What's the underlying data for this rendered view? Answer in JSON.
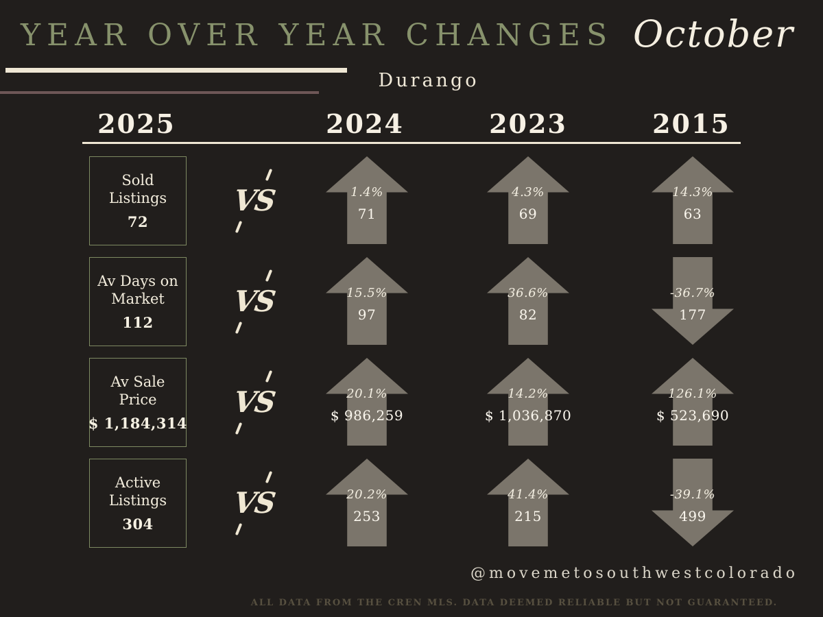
{
  "header": {
    "title": "YEAR OVER YEAR CHANGES",
    "month": "October",
    "location": "Durango"
  },
  "columns": {
    "current": "2025",
    "years": [
      "2024",
      "2023",
      "2015"
    ]
  },
  "vs_label": "VS",
  "rows": [
    {
      "label": "Sold Listings",
      "current_value": "72",
      "comparisons": [
        {
          "year": "2024",
          "direction": "up",
          "pct": "1.4%",
          "value": "71"
        },
        {
          "year": "2023",
          "direction": "up",
          "pct": "4.3%",
          "value": "69"
        },
        {
          "year": "2015",
          "direction": "up",
          "pct": "14.3%",
          "value": "63"
        }
      ]
    },
    {
      "label": "Av Days on Market",
      "current_value": "112",
      "comparisons": [
        {
          "year": "2024",
          "direction": "up",
          "pct": "15.5%",
          "value": "97"
        },
        {
          "year": "2023",
          "direction": "up",
          "pct": "36.6%",
          "value": "82"
        },
        {
          "year": "2015",
          "direction": "down",
          "pct": "-36.7%",
          "value": "177"
        }
      ]
    },
    {
      "label": "Av Sale Price",
      "current_value": "$ 1,184,314",
      "comparisons": [
        {
          "year": "2024",
          "direction": "up",
          "pct": "20.1%",
          "value": "$ 986,259"
        },
        {
          "year": "2023",
          "direction": "up",
          "pct": "14.2%",
          "value": "$ 1,036,870"
        },
        {
          "year": "2015",
          "direction": "up",
          "pct": "126.1%",
          "value": "$ 523,690"
        }
      ]
    },
    {
      "label": "Active Listings",
      "current_value": "304",
      "comparisons": [
        {
          "year": "2024",
          "direction": "up",
          "pct": "20.2%",
          "value": "253"
        },
        {
          "year": "2023",
          "direction": "up",
          "pct": "41.4%",
          "value": "215"
        },
        {
          "year": "2015",
          "direction": "down",
          "pct": "-39.1%",
          "value": "499"
        }
      ]
    }
  ],
  "footer": {
    "handle": "@movemetosouthwestcolorado",
    "disclaimer": "ALL DATA FROM THE CREN MLS. DATA DEEMED RELIABLE BUT NOT GUARANTEED."
  },
  "colors": {
    "background": "#211e1c",
    "title_green": "#87926c",
    "cream": "#efe7d4",
    "mauve": "#6e5757",
    "arrow_gray": "#7b756b",
    "box_border": "#7e8a62",
    "disclaimer_text": "#575040"
  },
  "chart_data": {
    "type": "table",
    "title": "Year Over Year Changes — Durango — October",
    "columns": [
      "Metric",
      "2025",
      "2024",
      "2023",
      "2015"
    ],
    "rows": [
      [
        "Sold Listings",
        "72",
        "71 (+1.4%)",
        "69 (+4.3%)",
        "63 (+14.3%)"
      ],
      [
        "Av Days on Market",
        "112",
        "97 (+15.5%)",
        "82 (+36.6%)",
        "177 (-36.7%)"
      ],
      [
        "Av Sale Price",
        "$ 1,184,314",
        "$ 986,259 (+20.1%)",
        "$ 1,036,870 (+14.2%)",
        "$ 523,690 (+126.1%)"
      ],
      [
        "Active Listings",
        "304",
        "253 (+20.2%)",
        "215 (+41.4%)",
        "499 (-39.1%)"
      ]
    ]
  }
}
